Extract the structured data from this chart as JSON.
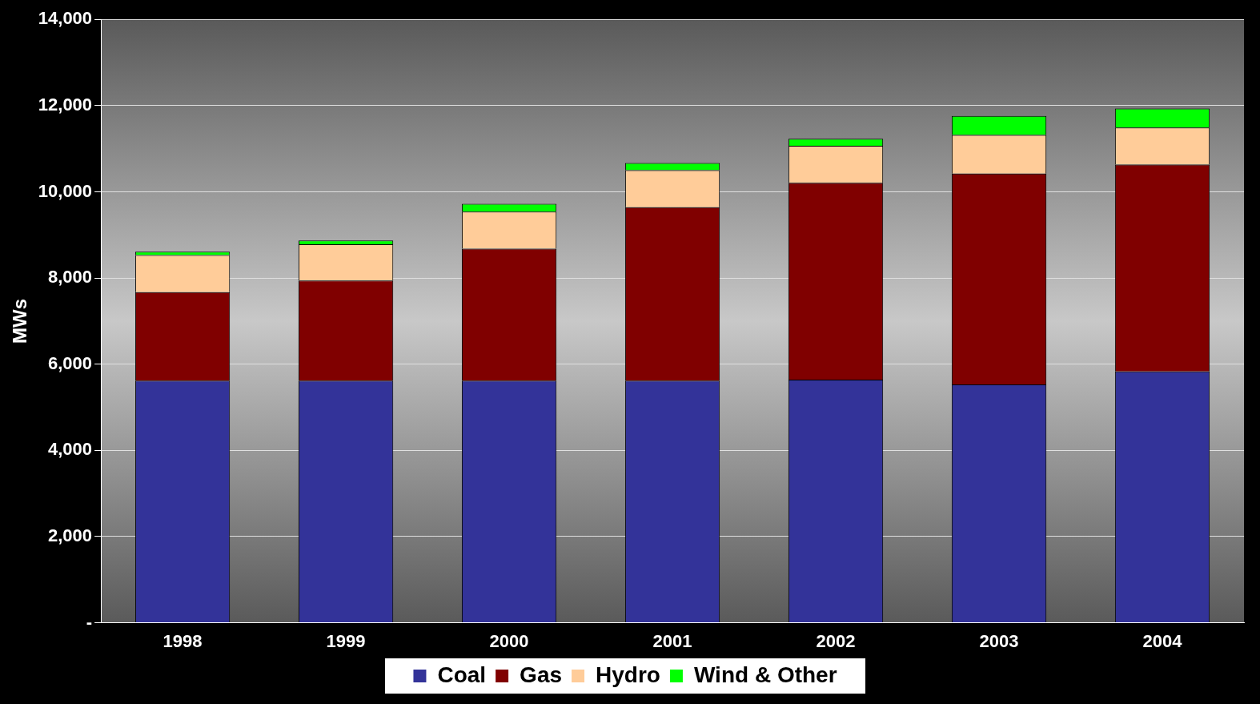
{
  "chart_data": {
    "type": "bar",
    "ylabel": "MWs",
    "categories": [
      "1998",
      "1999",
      "2000",
      "2001",
      "2002",
      "2003",
      "2004"
    ],
    "series": [
      {
        "name": "Coal",
        "color": "#333399",
        "values": [
          5620,
          5620,
          5620,
          5620,
          5640,
          5530,
          5830
        ]
      },
      {
        "name": "Gas",
        "color": "#800000",
        "values": [
          2050,
          2320,
          3060,
          4020,
          4570,
          4890,
          4800
        ]
      },
      {
        "name": "Hydro",
        "color": "#ffcc99",
        "values": [
          860,
          840,
          860,
          860,
          860,
          900,
          860
        ]
      },
      {
        "name": "Wind & Other",
        "color": "#00ff00",
        "values": [
          80,
          90,
          180,
          170,
          160,
          440,
          440
        ]
      }
    ],
    "stacked": true,
    "ylim": [
      0,
      14000
    ],
    "yticks": [
      {
        "value": 0,
        "label": "-"
      },
      {
        "value": 2000,
        "label": "2,000"
      },
      {
        "value": 4000,
        "label": "4,000"
      },
      {
        "value": 6000,
        "label": "6,000"
      },
      {
        "value": 8000,
        "label": "8,000"
      },
      {
        "value": 10000,
        "label": "10,000"
      },
      {
        "value": 12000,
        "label": "12,000"
      },
      {
        "value": 14000,
        "label": "14,000"
      }
    ],
    "grid": "y",
    "legend": "bottom"
  }
}
